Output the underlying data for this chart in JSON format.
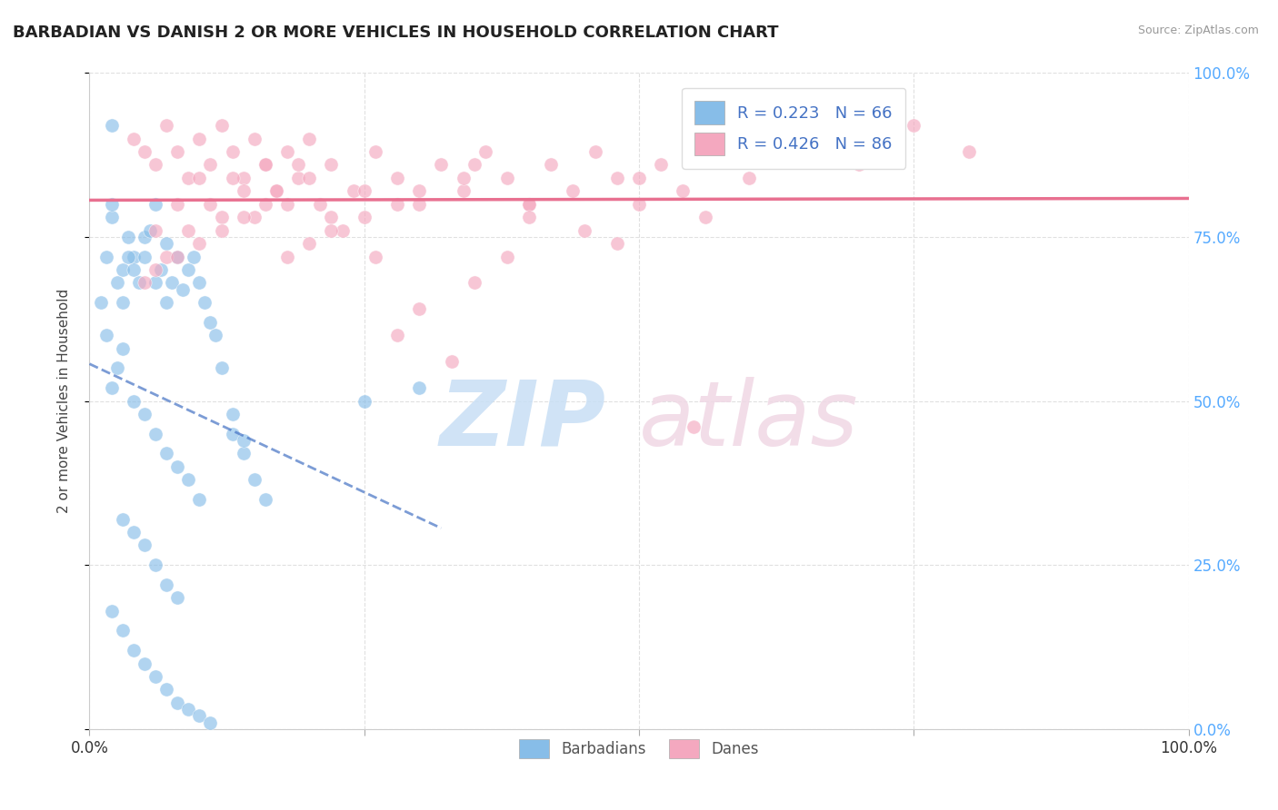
{
  "title": "BARBADIAN VS DANISH 2 OR MORE VEHICLES IN HOUSEHOLD CORRELATION CHART",
  "source": "Source: ZipAtlas.com",
  "ylabel": "2 or more Vehicles in Household",
  "R_barbadian": 0.223,
  "N_barbadian": 66,
  "R_danish": 0.426,
  "N_danish": 86,
  "barbadian_color": "#87bde8",
  "danish_color": "#f4a8bf",
  "barbadian_line_color": "#4472c4",
  "danish_line_color": "#e87090",
  "barbadian_line_dash": "--",
  "right_axis_color": "#55aaff",
  "bottom_legend_color": "#55aaff",
  "background_color": "#ffffff",
  "grid_color": "#e0e0e0",
  "title_color": "#222222",
  "source_color": "#999999",
  "watermark_zip_color": "#d8e8f5",
  "watermark_atlas_color": "#e8d8e8",
  "xlim": [
    0.0,
    1.0
  ],
  "ylim": [
    0.0,
    1.0
  ],
  "barb_x": [
    0.02,
    0.015,
    0.025,
    0.01,
    0.03,
    0.035,
    0.02,
    0.04,
    0.03,
    0.015,
    0.05,
    0.04,
    0.045,
    0.035,
    0.06,
    0.055,
    0.05,
    0.07,
    0.065,
    0.06,
    0.08,
    0.075,
    0.07,
    0.09,
    0.085,
    0.095,
    0.1,
    0.105,
    0.11,
    0.115,
    0.03,
    0.025,
    0.02,
    0.04,
    0.05,
    0.06,
    0.07,
    0.08,
    0.09,
    0.1,
    0.03,
    0.04,
    0.05,
    0.06,
    0.07,
    0.08,
    0.13,
    0.14,
    0.15,
    0.16,
    0.02,
    0.03,
    0.04,
    0.05,
    0.06,
    0.07,
    0.08,
    0.09,
    0.1,
    0.11,
    0.25,
    0.3,
    0.12,
    0.13,
    0.14,
    0.02
  ],
  "barb_y": [
    0.78,
    0.72,
    0.68,
    0.65,
    0.7,
    0.75,
    0.8,
    0.72,
    0.65,
    0.6,
    0.75,
    0.7,
    0.68,
    0.72,
    0.8,
    0.76,
    0.72,
    0.74,
    0.7,
    0.68,
    0.72,
    0.68,
    0.65,
    0.7,
    0.67,
    0.72,
    0.68,
    0.65,
    0.62,
    0.6,
    0.58,
    0.55,
    0.52,
    0.5,
    0.48,
    0.45,
    0.42,
    0.4,
    0.38,
    0.35,
    0.32,
    0.3,
    0.28,
    0.25,
    0.22,
    0.2,
    0.45,
    0.42,
    0.38,
    0.35,
    0.18,
    0.15,
    0.12,
    0.1,
    0.08,
    0.06,
    0.04,
    0.03,
    0.02,
    0.01,
    0.5,
    0.52,
    0.55,
    0.48,
    0.44,
    0.92
  ],
  "dan_x": [
    0.04,
    0.05,
    0.06,
    0.07,
    0.08,
    0.09,
    0.1,
    0.11,
    0.12,
    0.13,
    0.14,
    0.15,
    0.16,
    0.17,
    0.18,
    0.19,
    0.2,
    0.22,
    0.24,
    0.26,
    0.28,
    0.3,
    0.32,
    0.34,
    0.36,
    0.38,
    0.4,
    0.42,
    0.44,
    0.46,
    0.48,
    0.5,
    0.52,
    0.54,
    0.56,
    0.6,
    0.65,
    0.7,
    0.75,
    0.8,
    0.06,
    0.08,
    0.1,
    0.12,
    0.14,
    0.16,
    0.18,
    0.2,
    0.22,
    0.25,
    0.07,
    0.09,
    0.11,
    0.13,
    0.15,
    0.17,
    0.19,
    0.21,
    0.23,
    0.26,
    0.05,
    0.08,
    0.12,
    0.16,
    0.2,
    0.25,
    0.3,
    0.35,
    0.4,
    0.5,
    0.06,
    0.1,
    0.14,
    0.18,
    0.22,
    0.28,
    0.34,
    0.4,
    0.48,
    0.55,
    0.3,
    0.35,
    0.28,
    0.33,
    0.38,
    0.45
  ],
  "dan_y": [
    0.9,
    0.88,
    0.86,
    0.92,
    0.88,
    0.84,
    0.9,
    0.86,
    0.92,
    0.88,
    0.84,
    0.9,
    0.86,
    0.82,
    0.88,
    0.84,
    0.9,
    0.86,
    0.82,
    0.88,
    0.84,
    0.8,
    0.86,
    0.82,
    0.88,
    0.84,
    0.8,
    0.86,
    0.82,
    0.88,
    0.84,
    0.8,
    0.86,
    0.82,
    0.78,
    0.84,
    0.9,
    0.86,
    0.92,
    0.88,
    0.76,
    0.8,
    0.84,
    0.78,
    0.82,
    0.86,
    0.8,
    0.84,
    0.78,
    0.82,
    0.72,
    0.76,
    0.8,
    0.84,
    0.78,
    0.82,
    0.86,
    0.8,
    0.76,
    0.72,
    0.68,
    0.72,
    0.76,
    0.8,
    0.74,
    0.78,
    0.82,
    0.86,
    0.8,
    0.84,
    0.7,
    0.74,
    0.78,
    0.72,
    0.76,
    0.8,
    0.84,
    0.78,
    0.74,
    0.46,
    0.64,
    0.68,
    0.6,
    0.56,
    0.72,
    0.76
  ]
}
